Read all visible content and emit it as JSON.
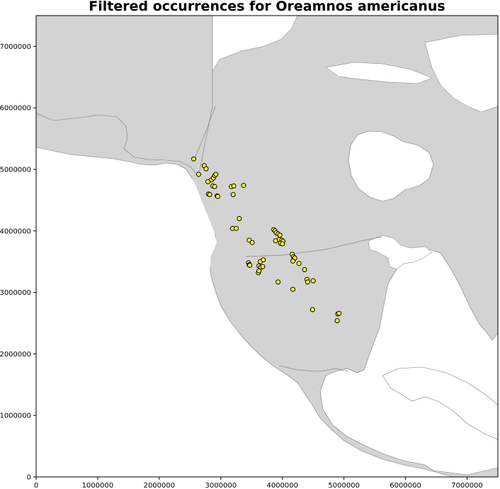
{
  "chart_data": {
    "type": "scatter",
    "title": "Filtered occurrences for Oreamnos americanus",
    "xlabel": "",
    "ylabel": "",
    "xlim": [
      0,
      7500000
    ],
    "ylim": [
      0,
      7500000
    ],
    "x_ticks": [
      0,
      1000000,
      2000000,
      3000000,
      4000000,
      5000000,
      6000000,
      7000000
    ],
    "y_ticks": [
      0,
      1000000,
      2000000,
      3000000,
      4000000,
      5000000,
      6000000,
      7000000
    ],
    "x_tick_labels": [
      "0",
      "1000000",
      "2000000",
      "3000000",
      "4000000",
      "5000000",
      "6000000",
      "7000000"
    ],
    "y_tick_labels": [
      "0",
      "1000000",
      "2000000",
      "3000000",
      "4000000",
      "5000000",
      "6000000",
      "7000000"
    ],
    "grid": false,
    "colors": {
      "land": "#d3d3d3",
      "water": "#ffffff",
      "point_fill": "#ffff33",
      "point_edge": "#000000",
      "border": "#8c8c8c"
    },
    "points": [
      [
        2560000,
        5170000
      ],
      [
        2640000,
        4920000
      ],
      [
        2730000,
        5060000
      ],
      [
        2760000,
        5010000
      ],
      [
        2790000,
        4800000
      ],
      [
        2800000,
        4600000
      ],
      [
        2820000,
        4590000
      ],
      [
        2850000,
        4830000
      ],
      [
        2880000,
        4860000
      ],
      [
        2900000,
        4900000
      ],
      [
        2920000,
        4920000
      ],
      [
        2870000,
        4730000
      ],
      [
        2900000,
        4720000
      ],
      [
        2940000,
        4570000
      ],
      [
        2950000,
        4560000
      ],
      [
        3170000,
        4720000
      ],
      [
        3210000,
        4730000
      ],
      [
        3200000,
        4590000
      ],
      [
        3370000,
        4740000
      ],
      [
        3300000,
        4200000
      ],
      [
        3190000,
        4040000
      ],
      [
        3250000,
        4040000
      ],
      [
        3460000,
        3850000
      ],
      [
        3510000,
        3810000
      ],
      [
        3450000,
        3480000
      ],
      [
        3460000,
        3450000
      ],
      [
        3470000,
        3440000
      ],
      [
        3620000,
        3430000
      ],
      [
        3650000,
        3410000
      ],
      [
        3680000,
        3420000
      ],
      [
        3640000,
        3500000
      ],
      [
        3690000,
        3530000
      ],
      [
        3610000,
        3320000
      ],
      [
        3620000,
        3350000
      ],
      [
        3860000,
        4020000
      ],
      [
        3880000,
        4000000
      ],
      [
        3900000,
        3970000
      ],
      [
        3930000,
        3950000
      ],
      [
        3960000,
        3930000
      ],
      [
        3890000,
        3840000
      ],
      [
        3950000,
        3860000
      ],
      [
        3990000,
        3850000
      ],
      [
        4010000,
        3830000
      ],
      [
        3970000,
        3800000
      ],
      [
        4000000,
        3790000
      ],
      [
        3930000,
        3170000
      ],
      [
        4160000,
        3620000
      ],
      [
        4180000,
        3580000
      ],
      [
        4190000,
        3550000
      ],
      [
        4200000,
        3560000
      ],
      [
        4170000,
        3510000
      ],
      [
        4270000,
        3470000
      ],
      [
        4360000,
        3370000
      ],
      [
        4400000,
        3210000
      ],
      [
        4410000,
        3170000
      ],
      [
        4500000,
        3190000
      ],
      [
        4170000,
        3050000
      ],
      [
        4490000,
        2720000
      ],
      [
        4900000,
        2650000
      ],
      [
        4920000,
        2660000
      ],
      [
        4890000,
        2540000
      ]
    ]
  }
}
